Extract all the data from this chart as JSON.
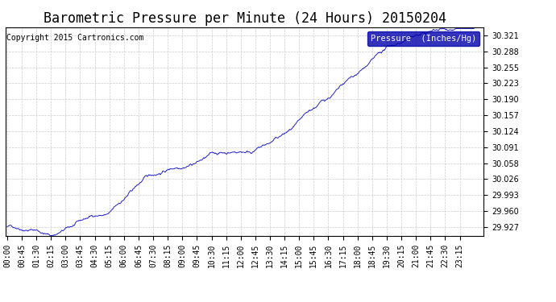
{
  "title": "Barometric Pressure per Minute (24 Hours) 20150204",
  "copyright": "Copyright 2015 Cartronics.com",
  "legend_label": "Pressure  (Inches/Hg)",
  "y_ticks": [
    29.927,
    29.96,
    29.993,
    30.026,
    30.058,
    30.091,
    30.124,
    30.157,
    30.19,
    30.223,
    30.255,
    30.288,
    30.321
  ],
  "y_min": 29.91,
  "y_max": 30.338,
  "x_tick_labels": [
    "00:00",
    "00:45",
    "01:30",
    "02:15",
    "03:00",
    "03:45",
    "04:30",
    "05:15",
    "06:00",
    "06:45",
    "07:30",
    "08:15",
    "09:00",
    "09:45",
    "10:30",
    "11:15",
    "12:00",
    "12:45",
    "13:30",
    "14:15",
    "15:00",
    "15:45",
    "16:30",
    "17:15",
    "18:00",
    "18:45",
    "19:30",
    "20:15",
    "21:00",
    "21:45",
    "22:30",
    "23:15"
  ],
  "line_color": "#2222CC",
  "background_color": "#ffffff",
  "grid_color": "#cccccc",
  "title_fontsize": 12,
  "tick_fontsize": 7,
  "copyright_fontsize": 7,
  "legend_bg": "#0000AA",
  "legend_text_color": "#ffffff"
}
